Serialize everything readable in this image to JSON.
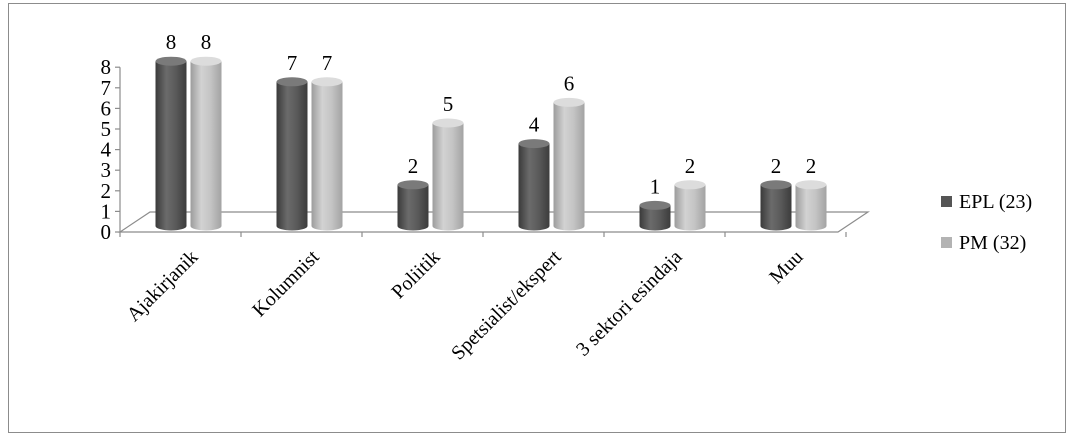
{
  "chart_data": {
    "type": "bar",
    "style": "3d-cylinder",
    "categories": [
      "Ajakirjanik",
      "Kolumnist",
      "Poliitik",
      "Spetsialist/ekspert",
      "3 sektori esindaja",
      "Muu"
    ],
    "series": [
      {
        "name": "EPL (23)",
        "values": [
          8,
          7,
          2,
          4,
          1,
          2
        ],
        "color": "#555555",
        "label_values": [
          "8",
          "7",
          "2",
          "4",
          "1",
          "2"
        ]
      },
      {
        "name": "PM (32)",
        "values": [
          8,
          7,
          5,
          6,
          2,
          2
        ],
        "color": "#b3b3b3",
        "label_values": [
          "8",
          "7",
          "5",
          "6",
          "2",
          "2"
        ]
      }
    ],
    "y_ticks": [
      "0",
      "1",
      "2",
      "3",
      "4",
      "5",
      "6",
      "7",
      "8"
    ],
    "ylim": [
      0,
      8
    ],
    "grid": false,
    "legend_position": "right",
    "border_color": "#8c8c8c",
    "axis_color": "#8c8c8c"
  }
}
